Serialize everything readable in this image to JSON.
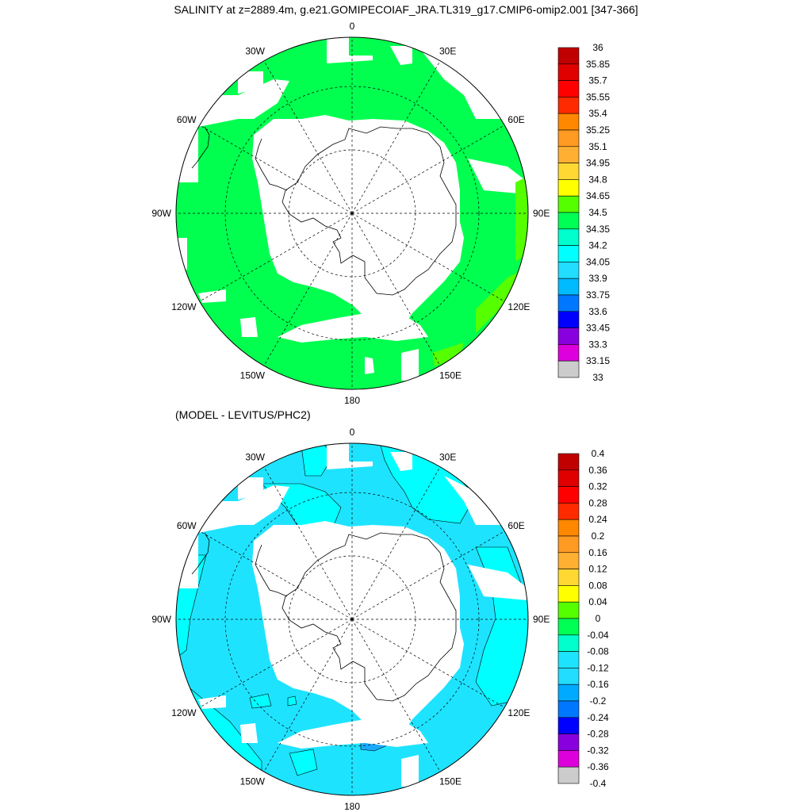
{
  "title": "SALINITY at z=2889.4m, g.e21.GOMIPECOIAF_JRA.TL319_g17.CMIP6-omip2.001 [347-366]",
  "subtitle": "(MODEL - LEVITUS/PHC2)",
  "panels": [
    {
      "fill": "#00ff4f",
      "longitude_labels": [
        "0",
        "30E",
        "60E",
        "90E",
        "120E",
        "150E",
        "180",
        "150W",
        "120W",
        "90W",
        "60W",
        "30W"
      ],
      "colorbar": {
        "labels": [
          "36",
          "35.85",
          "35.7",
          "35.55",
          "35.4",
          "35.25",
          "35.1",
          "34.95",
          "34.8",
          "34.65",
          "34.5",
          "34.35",
          "34.2",
          "34.05",
          "33.9",
          "33.75",
          "33.6",
          "33.45",
          "33.3",
          "33.15",
          "33"
        ],
        "colors": [
          "#c00000",
          "#e00000",
          "#ff0000",
          "#ff2a00",
          "#ff8800",
          "#ff9a22",
          "#ffb033",
          "#ffd833",
          "#ffff00",
          "#55ff00",
          "#00ff55",
          "#00ffcc",
          "#00ffff",
          "#22ddff",
          "#00bbff",
          "#0077ff",
          "#0000ff",
          "#8800dd",
          "#dd00dd",
          "#cccccc",
          "#707070"
        ]
      }
    },
    {
      "fill": "#1ee3ff",
      "longitude_labels": [
        "0",
        "30E",
        "60E",
        "90E",
        "120E",
        "150E",
        "180",
        "150W",
        "120W",
        "90W",
        "60W",
        "30W"
      ],
      "colorbar": {
        "labels": [
          "0.4",
          "0.36",
          "0.32",
          "0.28",
          "0.24",
          "0.2",
          "0.16",
          "0.12",
          "0.08",
          "0.04",
          "0",
          "-0.04",
          "-0.08",
          "-0.12",
          "-0.16",
          "-0.2",
          "-0.24",
          "-0.28",
          "-0.32",
          "-0.36",
          "-0.4"
        ],
        "colors": [
          "#c00000",
          "#e00000",
          "#ff0000",
          "#ff2a00",
          "#ff8800",
          "#ff9a22",
          "#ffb033",
          "#ffd833",
          "#ffff00",
          "#55ff00",
          "#00ff55",
          "#00ffcc",
          "#1ee3ff",
          "#22ddff",
          "#00aaff",
          "#0077ff",
          "#0000ff",
          "#8800dd",
          "#dd00dd",
          "#cccccc",
          "#707070"
        ]
      }
    }
  ]
}
